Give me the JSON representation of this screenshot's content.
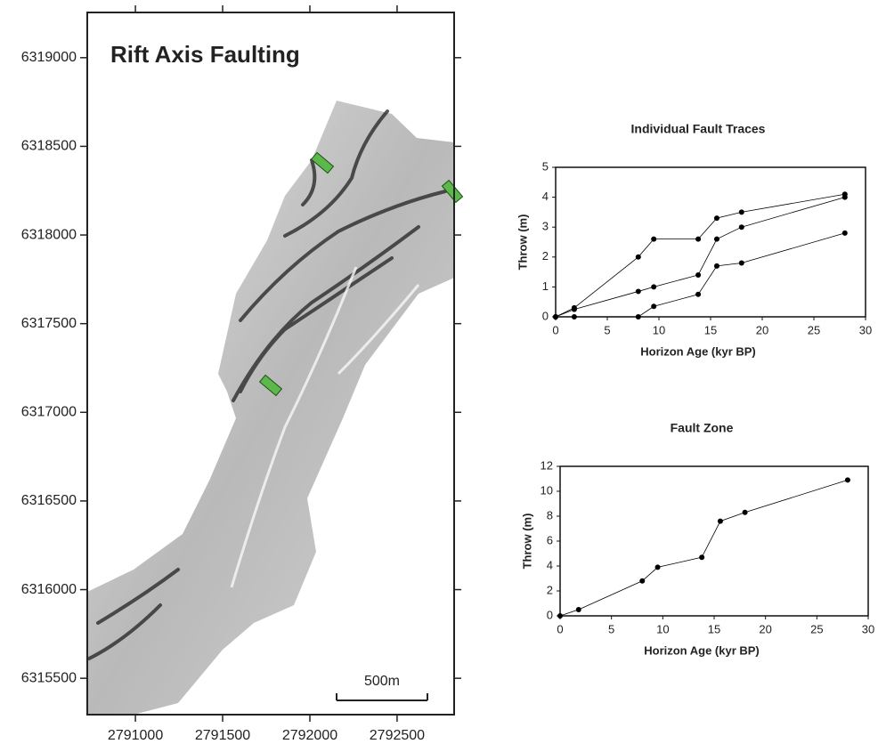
{
  "chart_data": [
    {
      "type": "map",
      "title": "Rift Axis Faulting",
      "annotation": "500m",
      "xlim": [
        2790724,
        2792827
      ],
      "ylim": [
        6315295,
        6319255
      ],
      "xticks": [
        2791000,
        2791500,
        2792000,
        2792500
      ],
      "yticks": [
        6315500,
        6316000,
        6316500,
        6317000,
        6317500,
        6318000,
        6318500,
        6319000
      ]
    },
    {
      "type": "line",
      "title": "Individual Fault Traces",
      "xlabel": "Horizon Age (kyr BP)",
      "ylabel": "Throw (m)",
      "x": [
        0,
        1.8,
        8,
        9.5,
        13.8,
        15.6,
        18,
        28
      ],
      "series": [
        {
          "color": "#000000",
          "values": [
            0,
            0.3,
            2.0,
            2.6,
            2.6,
            3.3,
            3.5,
            4.1
          ]
        },
        {
          "color": "#000000",
          "values": [
            0,
            0.25,
            0.85,
            1.0,
            1.4,
            2.6,
            3.0,
            4.0
          ]
        },
        {
          "color": "#000000",
          "values": [
            0,
            0,
            0,
            0.35,
            0.75,
            1.7,
            1.8,
            2.8
          ]
        }
      ],
      "xlim": [
        0,
        30
      ],
      "ylim": [
        0,
        5
      ],
      "xticks": [
        0,
        5,
        10,
        15,
        20,
        25,
        30
      ],
      "yticks": [
        0,
        1,
        2,
        3,
        4,
        5
      ]
    },
    {
      "type": "line",
      "title": "Fault Zone",
      "xlabel": "Horizon Age (kyr BP)",
      "ylabel": "Throw (m)",
      "x": [
        0,
        1.8,
        8,
        9.5,
        13.8,
        15.6,
        18,
        28
      ],
      "series": [
        {
          "color": "#000000",
          "values": [
            0,
            0.5,
            2.8,
            3.9,
            4.7,
            7.6,
            8.3,
            10.9
          ]
        }
      ],
      "xlim": [
        0,
        30
      ],
      "ylim": [
        0,
        12
      ],
      "xticks": [
        0,
        5,
        10,
        15,
        20,
        25,
        30
      ],
      "yticks": [
        0,
        2,
        4,
        6,
        8,
        10,
        12
      ]
    }
  ]
}
